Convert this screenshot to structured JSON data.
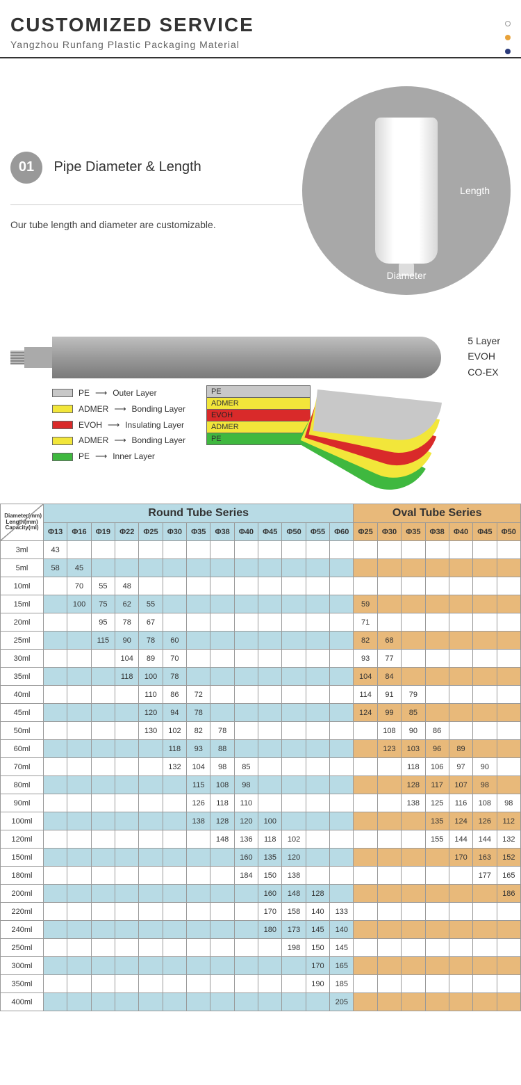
{
  "header": {
    "title": "CUSTOMIZED SERVICE",
    "subtitle": "Yangzhou Runfang Plastic Packaging Material"
  },
  "section1": {
    "number": "01",
    "title": "Pipe Diameter & Length",
    "text": "Our tube length and diameter are customizable.",
    "label_length": "Length",
    "label_diameter": "Diameter"
  },
  "layers": {
    "right_labels": [
      "5 Layer",
      "EVOH",
      "CO-EX"
    ],
    "legend": [
      {
        "color": "#c8c8c8",
        "name": "PE",
        "desc": "Outer Layer"
      },
      {
        "color": "#f2e63a",
        "name": "ADMER",
        "desc": "Bonding Layer"
      },
      {
        "color": "#d92a2a",
        "name": "EVOH",
        "desc": "Insulating Layer"
      },
      {
        "color": "#f2e63a",
        "name": "ADMER",
        "desc": "Bonding Layer"
      },
      {
        "color": "#3fb83f",
        "name": "PE",
        "desc": "Inner Layer"
      }
    ],
    "stack": [
      "PE",
      "ADMER",
      "EVOH",
      "ADMER",
      "PE"
    ]
  },
  "table": {
    "corner_lines": [
      "Diameter(mm)",
      "Length(mm)",
      "Capacity(ml)"
    ],
    "round_title": "Round Tube Series",
    "oval_title": "Oval Tube Series",
    "round_cols": [
      "Φ13",
      "Φ16",
      "Φ19",
      "Φ22",
      "Φ25",
      "Φ30",
      "Φ35",
      "Φ38",
      "Φ40",
      "Φ45",
      "Φ50",
      "Φ55",
      "Φ60"
    ],
    "oval_cols": [
      "Φ25",
      "Φ30",
      "Φ35",
      "Φ38",
      "Φ40",
      "Φ45",
      "Φ50"
    ],
    "rows": [
      {
        "cap": "3ml",
        "r": [
          "43",
          "",
          "",
          "",
          "",
          "",
          "",
          "",
          "",
          "",
          "",
          "",
          ""
        ],
        "o": [
          "",
          "",
          "",
          "",
          "",
          "",
          ""
        ]
      },
      {
        "cap": "5ml",
        "r": [
          "58",
          "45",
          "",
          "",
          "",
          "",
          "",
          "",
          "",
          "",
          "",
          "",
          ""
        ],
        "o": [
          "",
          "",
          "",
          "",
          "",
          "",
          ""
        ]
      },
      {
        "cap": "10ml",
        "r": [
          "",
          "70",
          "55",
          "48",
          "",
          "",
          "",
          "",
          "",
          "",
          "",
          "",
          ""
        ],
        "o": [
          "",
          "",
          "",
          "",
          "",
          "",
          ""
        ]
      },
      {
        "cap": "15ml",
        "r": [
          "",
          "100",
          "75",
          "62",
          "55",
          "",
          "",
          "",
          "",
          "",
          "",
          "",
          ""
        ],
        "o": [
          "59",
          "",
          "",
          "",
          "",
          "",
          ""
        ]
      },
      {
        "cap": "20ml",
        "r": [
          "",
          "",
          "95",
          "78",
          "67",
          "",
          "",
          "",
          "",
          "",
          "",
          "",
          ""
        ],
        "o": [
          "71",
          "",
          "",
          "",
          "",
          "",
          ""
        ]
      },
      {
        "cap": "25ml",
        "r": [
          "",
          "",
          "115",
          "90",
          "78",
          "60",
          "",
          "",
          "",
          "",
          "",
          "",
          ""
        ],
        "o": [
          "82",
          "68",
          "",
          "",
          "",
          "",
          ""
        ]
      },
      {
        "cap": "30ml",
        "r": [
          "",
          "",
          "",
          "104",
          "89",
          "70",
          "",
          "",
          "",
          "",
          "",
          "",
          ""
        ],
        "o": [
          "93",
          "77",
          "",
          "",
          "",
          "",
          ""
        ]
      },
      {
        "cap": "35ml",
        "r": [
          "",
          "",
          "",
          "118",
          "100",
          "78",
          "",
          "",
          "",
          "",
          "",
          "",
          ""
        ],
        "o": [
          "104",
          "84",
          "",
          "",
          "",
          "",
          ""
        ]
      },
      {
        "cap": "40ml",
        "r": [
          "",
          "",
          "",
          "",
          "110",
          "86",
          "72",
          "",
          "",
          "",
          "",
          "",
          ""
        ],
        "o": [
          "114",
          "91",
          "79",
          "",
          "",
          "",
          ""
        ]
      },
      {
        "cap": "45ml",
        "r": [
          "",
          "",
          "",
          "",
          "120",
          "94",
          "78",
          "",
          "",
          "",
          "",
          "",
          ""
        ],
        "o": [
          "124",
          "99",
          "85",
          "",
          "",
          "",
          ""
        ]
      },
      {
        "cap": "50ml",
        "r": [
          "",
          "",
          "",
          "",
          "130",
          "102",
          "82",
          "78",
          "",
          "",
          "",
          "",
          ""
        ],
        "o": [
          "",
          "108",
          "90",
          "86",
          "",
          "",
          ""
        ]
      },
      {
        "cap": "60ml",
        "r": [
          "",
          "",
          "",
          "",
          "",
          "118",
          "93",
          "88",
          "",
          "",
          "",
          "",
          ""
        ],
        "o": [
          "",
          "123",
          "103",
          "96",
          "89",
          "",
          ""
        ]
      },
      {
        "cap": "70ml",
        "r": [
          "",
          "",
          "",
          "",
          "",
          "132",
          "104",
          "98",
          "85",
          "",
          "",
          "",
          ""
        ],
        "o": [
          "",
          "",
          "118",
          "106",
          "97",
          "90",
          ""
        ]
      },
      {
        "cap": "80ml",
        "r": [
          "",
          "",
          "",
          "",
          "",
          "",
          "115",
          "108",
          "98",
          "",
          "",
          "",
          ""
        ],
        "o": [
          "",
          "",
          "128",
          "117",
          "107",
          "98",
          ""
        ]
      },
      {
        "cap": "90ml",
        "r": [
          "",
          "",
          "",
          "",
          "",
          "",
          "126",
          "118",
          "110",
          "",
          "",
          "",
          ""
        ],
        "o": [
          "",
          "",
          "138",
          "125",
          "116",
          "108",
          "98"
        ]
      },
      {
        "cap": "100ml",
        "r": [
          "",
          "",
          "",
          "",
          "",
          "",
          "138",
          "128",
          "120",
          "100",
          "",
          "",
          ""
        ],
        "o": [
          "",
          "",
          "",
          "135",
          "124",
          "126",
          "112"
        ]
      },
      {
        "cap": "120ml",
        "r": [
          "",
          "",
          "",
          "",
          "",
          "",
          "",
          "148",
          "136",
          "118",
          "102",
          "",
          ""
        ],
        "o": [
          "",
          "",
          "",
          "155",
          "144",
          "144",
          "132"
        ]
      },
      {
        "cap": "150ml",
        "r": [
          "",
          "",
          "",
          "",
          "",
          "",
          "",
          "",
          "160",
          "135",
          "120",
          "",
          ""
        ],
        "o": [
          "",
          "",
          "",
          "",
          "170",
          "163",
          "152"
        ]
      },
      {
        "cap": "180ml",
        "r": [
          "",
          "",
          "",
          "",
          "",
          "",
          "",
          "",
          "184",
          "150",
          "138",
          "",
          ""
        ],
        "o": [
          "",
          "",
          "",
          "",
          "",
          "177",
          "165"
        ]
      },
      {
        "cap": "200ml",
        "r": [
          "",
          "",
          "",
          "",
          "",
          "",
          "",
          "",
          "",
          "160",
          "148",
          "128",
          ""
        ],
        "o": [
          "",
          "",
          "",
          "",
          "",
          "",
          "186"
        ]
      },
      {
        "cap": "220ml",
        "r": [
          "",
          "",
          "",
          "",
          "",
          "",
          "",
          "",
          "",
          "170",
          "158",
          "140",
          "133"
        ],
        "o": [
          "",
          "",
          "",
          "",
          "",
          "",
          ""
        ]
      },
      {
        "cap": "240ml",
        "r": [
          "",
          "",
          "",
          "",
          "",
          "",
          "",
          "",
          "",
          "180",
          "173",
          "145",
          "140"
        ],
        "o": [
          "",
          "",
          "",
          "",
          "",
          "",
          ""
        ]
      },
      {
        "cap": "250ml",
        "r": [
          "",
          "",
          "",
          "",
          "",
          "",
          "",
          "",
          "",
          "",
          "198",
          "150",
          "145"
        ],
        "o": [
          "",
          "",
          "",
          "",
          "",
          "",
          ""
        ]
      },
      {
        "cap": "300ml",
        "r": [
          "",
          "",
          "",
          "",
          "",
          "",
          "",
          "",
          "",
          "",
          "",
          "170",
          "165"
        ],
        "o": [
          "",
          "",
          "",
          "",
          "",
          "",
          ""
        ]
      },
      {
        "cap": "350ml",
        "r": [
          "",
          "",
          "",
          "",
          "",
          "",
          "",
          "",
          "",
          "",
          "",
          "190",
          "185"
        ],
        "o": [
          "",
          "",
          "",
          "",
          "",
          "",
          ""
        ]
      },
      {
        "cap": "400ml",
        "r": [
          "",
          "",
          "",
          "",
          "",
          "",
          "",
          "",
          "",
          "",
          "",
          "",
          "205"
        ],
        "o": [
          "",
          "",
          "",
          "",
          "",
          "",
          ""
        ]
      }
    ]
  }
}
